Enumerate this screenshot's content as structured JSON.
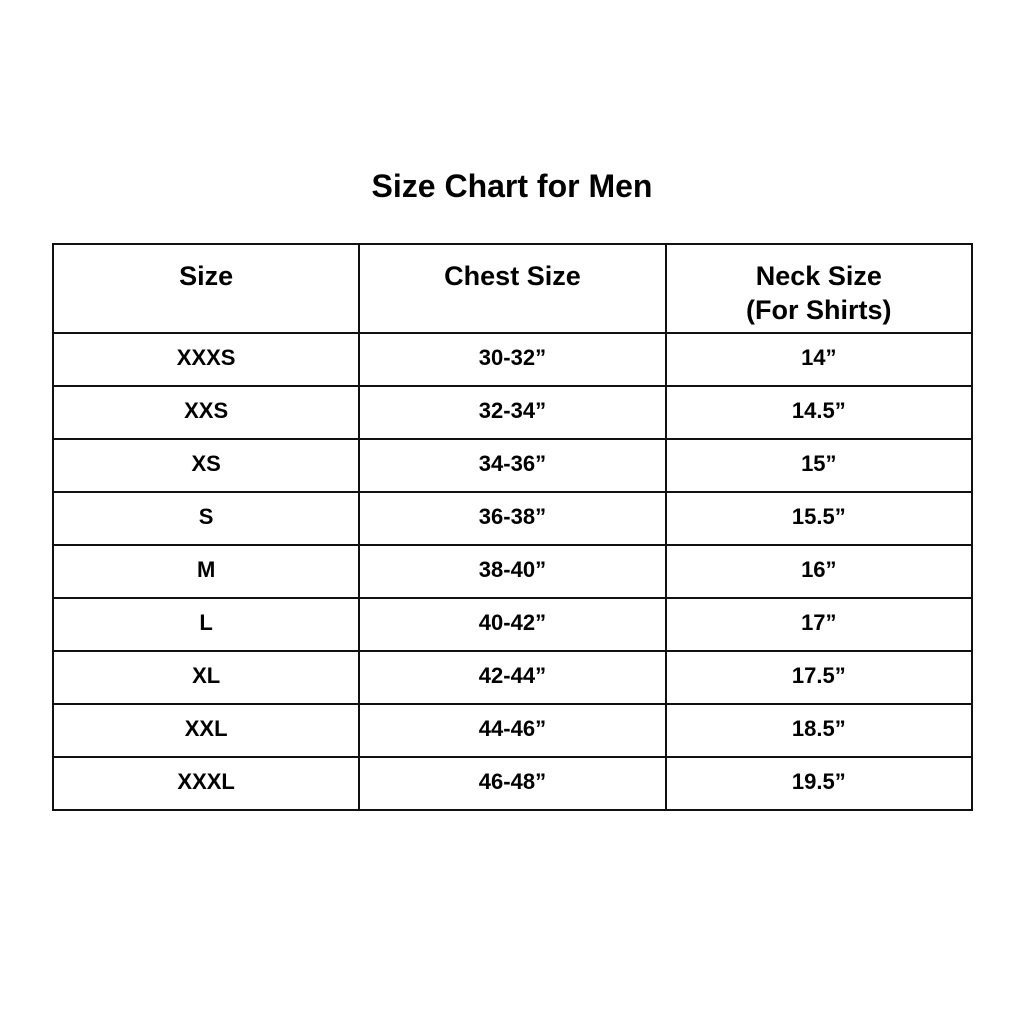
{
  "title": "Size Chart for Men",
  "headers": {
    "size": "Size",
    "chest": "Chest Size",
    "neck": "Neck Size",
    "neck_note": "(For Shirts)"
  },
  "rows": [
    {
      "size": "XXXS",
      "chest": "30-32”",
      "neck": "14”"
    },
    {
      "size": "XXS",
      "chest": "32-34”",
      "neck": "14.5”"
    },
    {
      "size": "XS",
      "chest": "34-36”",
      "neck": "15”"
    },
    {
      "size": "S",
      "chest": "36-38”",
      "neck": "15.5”"
    },
    {
      "size": "M",
      "chest": "38-40”",
      "neck": "16”"
    },
    {
      "size": "L",
      "chest": "40-42”",
      "neck": "17”"
    },
    {
      "size": "XL",
      "chest": "42-44”",
      "neck": "17.5”"
    },
    {
      "size": "XXL",
      "chest": "44-46”",
      "neck": "18.5”"
    },
    {
      "size": "XXXL",
      "chest": "46-48”",
      "neck": "19.5”"
    }
  ]
}
